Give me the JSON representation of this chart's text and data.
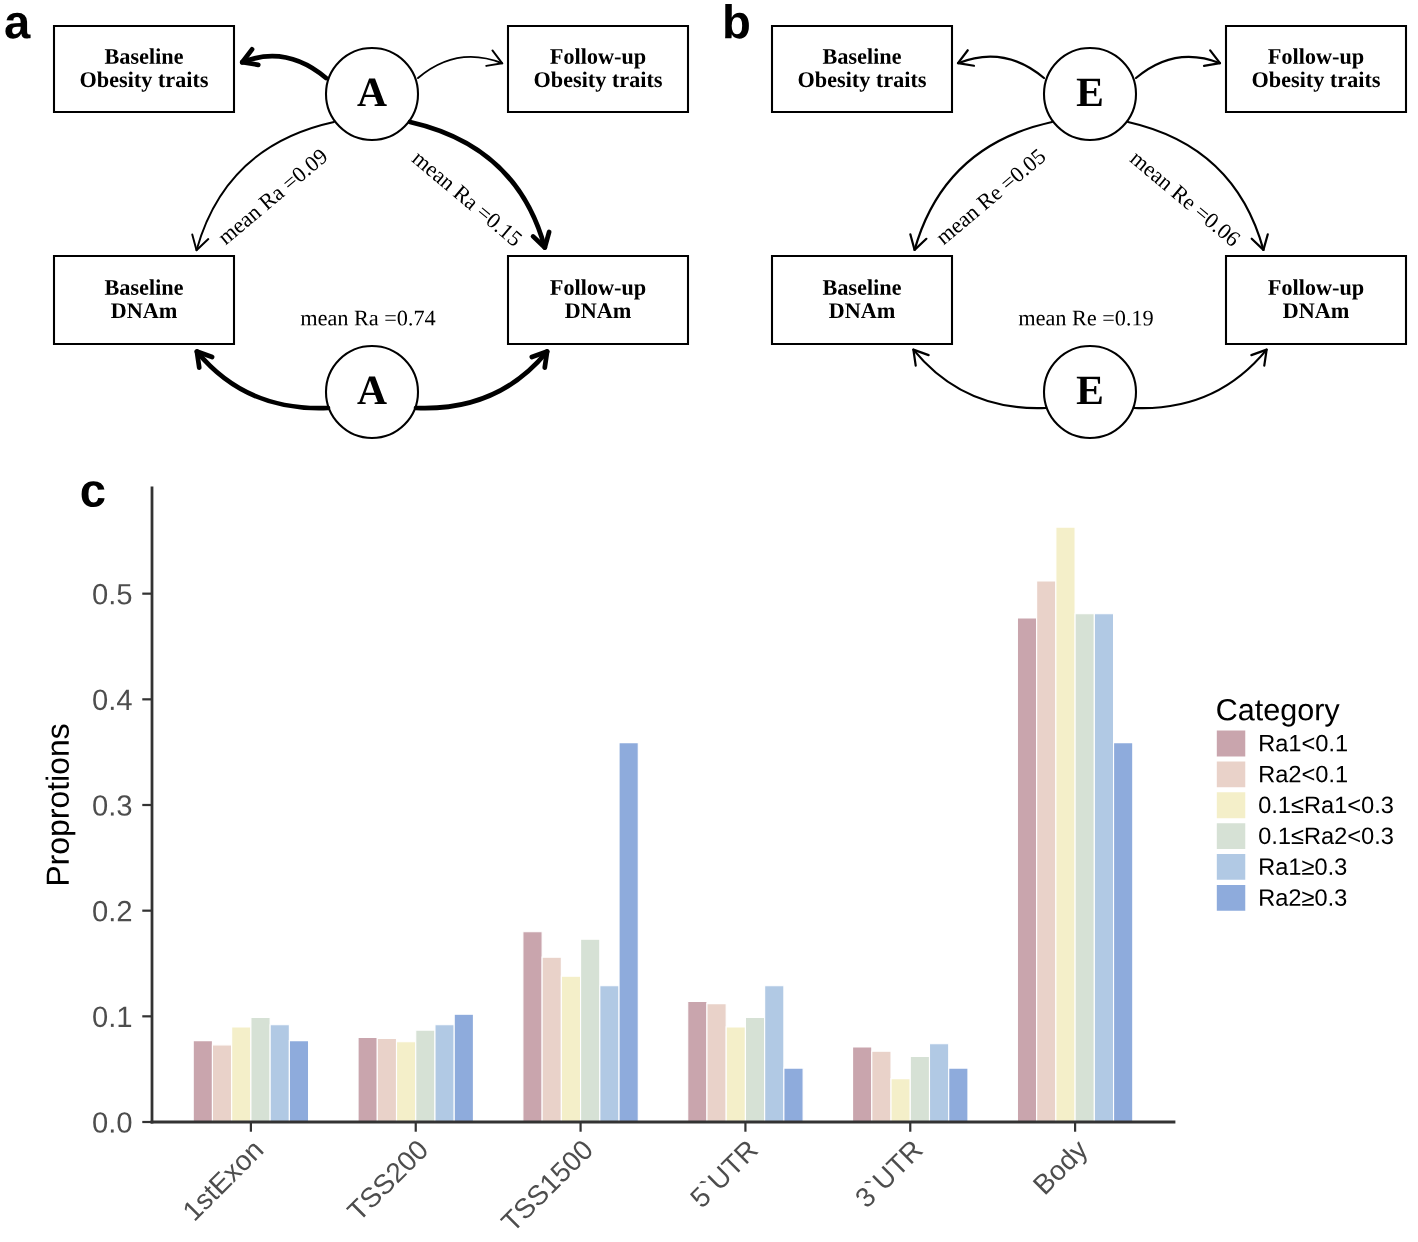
{
  "chart_data": [
    {
      "type": "other",
      "title": "a",
      "annotations": [
        "Baseline\nObesity traits",
        "Follow-up\nObesity traits",
        "A",
        "mean Ra =0.09",
        "mean Ra =0.15",
        "Baseline\nDNAm",
        "Follow-up\nDNAm",
        "mean Ra =0.74",
        "A"
      ]
    },
    {
      "type": "other",
      "title": "b",
      "annotations": [
        "Baseline\nObesity traits",
        "Follow-up\nObesity traits",
        "E",
        "mean Re =0.05",
        "mean Re =0.06",
        "Baseline\nDNAm",
        "Follow-up\nDNAm",
        "mean Re =0.19",
        "E"
      ]
    },
    {
      "type": "bar",
      "title": "c",
      "ylabel": "Proprotions",
      "legend_title": "Category",
      "legend": "right",
      "categories": [
        "1stExon",
        "TSS200",
        "TSS1500",
        "5`UTR",
        "3`UTR",
        "Body"
      ],
      "series": [
        {
          "name": "Ra1<0.1",
          "color": "#c9a5ad",
          "values": [
            0.077,
            0.08,
            0.18,
            0.114,
            0.071,
            0.477
          ]
        },
        {
          "name": "Ra2<0.1",
          "color": "#e9d2c9",
          "values": [
            0.073,
            0.079,
            0.156,
            0.112,
            0.067,
            0.512
          ]
        },
        {
          "name": "0.1≤Ra1<0.3",
          "color": "#f4efc9",
          "values": [
            0.09,
            0.076,
            0.138,
            0.09,
            0.041,
            0.563
          ]
        },
        {
          "name": "0.1≤Ra2<0.3",
          "color": "#d6e1d5",
          "values": [
            0.099,
            0.087,
            0.173,
            0.099,
            0.062,
            0.481
          ]
        },
        {
          "name": "Ra1≥0.3",
          "color": "#b1c9e4",
          "values": [
            0.092,
            0.092,
            0.129,
            0.129,
            0.074,
            0.481
          ]
        },
        {
          "name": "Ra2≥0.3",
          "color": "#8eabdc",
          "values": [
            0.077,
            0.102,
            0.359,
            0.051,
            0.051,
            0.359
          ]
        }
      ],
      "ylim": [
        0,
        0.6
      ],
      "yticks": [
        {
          "value": 0,
          "label": "0.0"
        },
        0.1,
        0.2,
        0.3,
        0.4,
        0.5
      ]
    }
  ]
}
